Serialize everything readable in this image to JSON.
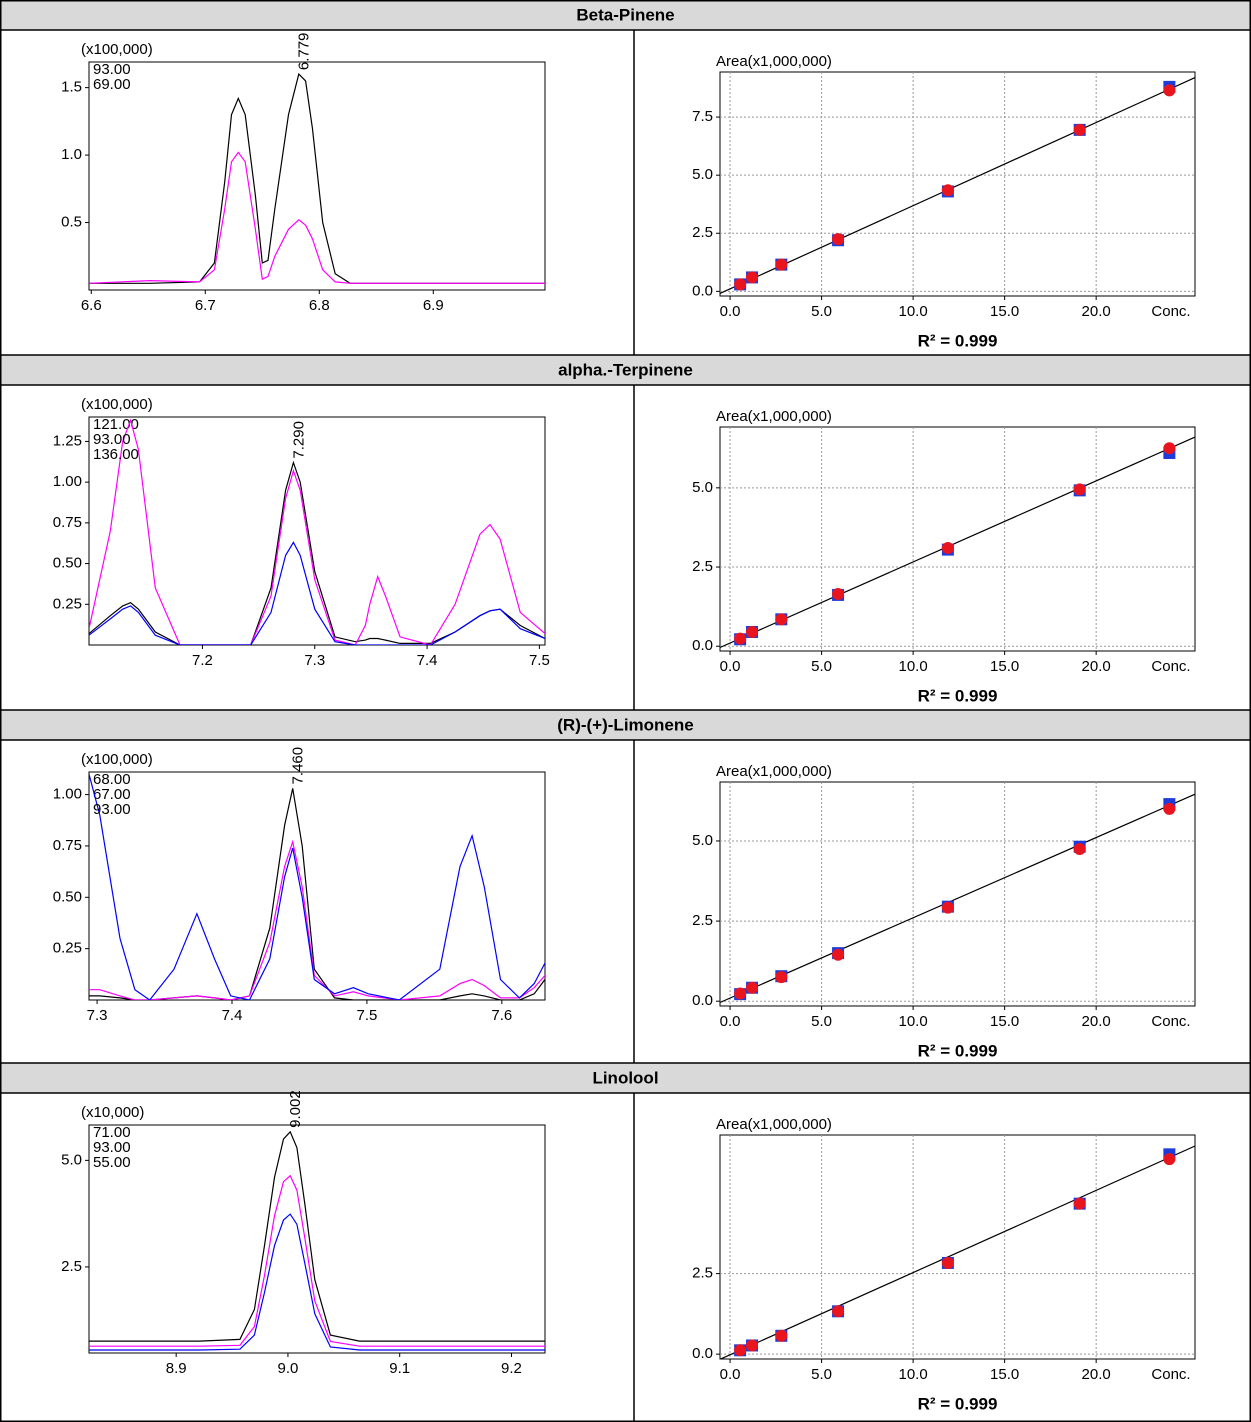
{
  "headings": [
    "Beta-Pinene",
    "alpha.-Terpinene",
    "(R)-(+)-Limonene",
    "Linolool"
  ],
  "chart_data": [
    {
      "type": "line",
      "y_label": "(x100,000)",
      "annotation": "6.779",
      "grid": false,
      "xlim": [
        6.598,
        6.998
      ],
      "xticks": [
        6.6,
        6.7,
        6.8,
        6.9
      ],
      "ylim": [
        0,
        1.69
      ],
      "yticks": [
        0.5,
        {
          "value": 1,
          "label": "1.0"
        },
        1.5
      ],
      "x": [
        6.598,
        6.651,
        6.695,
        6.708,
        6.717,
        6.723,
        6.729,
        6.735,
        6.744,
        6.75,
        6.755,
        6.761,
        6.773,
        6.782,
        6.788,
        6.794,
        6.803,
        6.814,
        6.827,
        6.998
      ],
      "series": [
        {
          "name": "93.00",
          "color": "#000000",
          "values": [
            0.05,
            0.05,
            0.06,
            0.2,
            0.8,
            1.3,
            1.42,
            1.3,
            0.7,
            0.2,
            0.22,
            0.6,
            1.3,
            1.6,
            1.55,
            1.2,
            0.5,
            0.12,
            0.05,
            0.05
          ]
        },
        {
          "name": "69.00",
          "color": "#ff00ff",
          "values": [
            0.05,
            0.07,
            0.06,
            0.15,
            0.6,
            0.95,
            1.02,
            0.95,
            0.45,
            0.08,
            0.1,
            0.25,
            0.45,
            0.52,
            0.48,
            0.38,
            0.15,
            0.06,
            0.05,
            0.05
          ]
        }
      ]
    },
    {
      "type": "scatter",
      "y_label": "Area(x1,000,000)",
      "x_label": "Conc.",
      "annotation": "R² = 0.999",
      "grid": true,
      "xlim": [
        -0.55,
        25.4
      ],
      "xticks": [
        {
          "value": 0,
          "label": "0.0"
        },
        {
          "value": 5,
          "label": "5.0"
        },
        {
          "value": 10,
          "label": "10.0"
        },
        {
          "value": 15,
          "label": "15.0"
        },
        {
          "value": 20,
          "label": "20.0"
        }
      ],
      "ylim": [
        -0.2,
        9.44
      ],
      "yticks": [
        {
          "value": 0,
          "label": "0.0"
        },
        2.5,
        {
          "value": 5,
          "label": "5.0"
        },
        7.5
      ],
      "x": [
        0.55,
        1.2,
        2.8,
        5.9,
        11.9,
        19.1,
        24.0
      ],
      "series": [
        {
          "style": "line",
          "color": "#000000",
          "x": [
            -0.55,
            25.4
          ],
          "values": [
            -0.09,
            9.2
          ]
        },
        {
          "marker": "square",
          "color": "#1e3cdc",
          "values": [
            0.3,
            0.6,
            1.15,
            2.2,
            4.3,
            6.95,
            8.8
          ]
        },
        {
          "marker": "circle",
          "color": "#e8141e",
          "values": [
            0.3,
            0.6,
            1.15,
            2.25,
            4.35,
            6.95,
            8.65
          ]
        }
      ]
    },
    {
      "type": "line",
      "y_label": "(x100,000)",
      "annotation": "7.290",
      "grid": false,
      "xlim": [
        7.099,
        7.505
      ],
      "xticks": [
        7.2,
        7.3,
        7.4,
        7.5
      ],
      "ylim": [
        0,
        1.4
      ],
      "yticks": [
        0.25,
        {
          "value": 0.5,
          "label": "0.50"
        },
        0.75,
        {
          "value": 1,
          "label": "1.00"
        },
        1.25
      ],
      "x": [
        7.099,
        7.118,
        7.129,
        7.136,
        7.143,
        7.158,
        7.18,
        7.243,
        7.261,
        7.274,
        7.281,
        7.287,
        7.3,
        7.318,
        7.336,
        7.345,
        7.349,
        7.356,
        7.363,
        7.376,
        7.403,
        7.425,
        7.447,
        7.456,
        7.465,
        7.483,
        7.505
      ],
      "series": [
        {
          "name": "121.00",
          "color": "#000000",
          "values": [
            0.07,
            0.18,
            0.24,
            0.26,
            0.22,
            0.08,
            0,
            0,
            0.35,
            0.95,
            1.12,
            1.0,
            0.45,
            0.05,
            0.02,
            0.03,
            0.04,
            0.04,
            0.03,
            0.01,
            0.01,
            0.08,
            0.18,
            0.21,
            0.22,
            0.12,
            0.04
          ]
        },
        {
          "name": "93.00",
          "color": "#ff00ff",
          "values": [
            0.1,
            0.7,
            1.25,
            1.38,
            1.2,
            0.35,
            0,
            0,
            0.3,
            0.9,
            1.07,
            0.95,
            0.4,
            0.03,
            0,
            0.12,
            0.25,
            0.42,
            0.3,
            0.05,
            0,
            0.25,
            0.68,
            0.74,
            0.65,
            0.2,
            0.07
          ]
        },
        {
          "name": "136.00",
          "color": "#0000ff",
          "values": [
            0.06,
            0.16,
            0.22,
            0.24,
            0.2,
            0.06,
            0,
            0,
            0.2,
            0.55,
            0.63,
            0.55,
            0.22,
            0.02,
            0,
            0,
            0,
            0,
            0,
            0,
            0,
            0.08,
            0.18,
            0.21,
            0.22,
            0.1,
            0.04
          ]
        }
      ]
    },
    {
      "type": "scatter",
      "y_label": "Area(x1,000,000)",
      "x_label": "Conc.",
      "annotation": "R² = 0.999",
      "grid": true,
      "xlim": [
        -0.55,
        25.4
      ],
      "xticks": [
        {
          "value": 0,
          "label": "0.0"
        },
        {
          "value": 5,
          "label": "5.0"
        },
        {
          "value": 10,
          "label": "10.0"
        },
        {
          "value": 15,
          "label": "15.0"
        },
        {
          "value": 20,
          "label": "20.0"
        }
      ],
      "ylim": [
        -0.15,
        6.92
      ],
      "yticks": [
        {
          "value": 0,
          "label": "0.0"
        },
        2.5,
        {
          "value": 5,
          "label": "5.0"
        }
      ],
      "x": [
        0.55,
        1.2,
        2.8,
        5.9,
        11.9,
        19.1,
        24.0
      ],
      "series": [
        {
          "style": "line",
          "color": "#000000",
          "x": [
            -0.55,
            25.4
          ],
          "values": [
            -0.04,
            6.6
          ]
        },
        {
          "marker": "square",
          "color": "#1e3cdc",
          "values": [
            0.22,
            0.45,
            0.85,
            1.62,
            3.05,
            4.92,
            6.1
          ]
        },
        {
          "marker": "circle",
          "color": "#e8141e",
          "values": [
            0.24,
            0.45,
            0.85,
            1.65,
            3.1,
            4.95,
            6.25
          ]
        }
      ]
    },
    {
      "type": "line",
      "y_label": "(x100,000)",
      "annotation": "7.460",
      "grid": false,
      "xlim": [
        7.294,
        7.632
      ],
      "xticks": [
        7.3,
        7.4,
        7.5,
        7.6
      ],
      "ylim": [
        0,
        1.11
      ],
      "yticks": [
        0.25,
        {
          "value": 0.5,
          "label": "0.50"
        },
        0.75,
        {
          "value": 1,
          "label": "1.00"
        }
      ],
      "x": [
        7.294,
        7.302,
        7.317,
        7.328,
        7.339,
        7.357,
        7.374,
        7.387,
        7.399,
        7.413,
        7.428,
        7.439,
        7.445,
        7.452,
        7.461,
        7.476,
        7.49,
        7.501,
        7.524,
        7.554,
        7.569,
        7.578,
        7.587,
        7.599,
        7.613,
        7.624,
        7.632
      ],
      "series": [
        {
          "name": "68.00",
          "color": "#000000",
          "values": [
            0.02,
            0.02,
            0.01,
            0,
            0,
            0.01,
            0.02,
            0.01,
            0,
            0.02,
            0.35,
            0.85,
            1.03,
            0.75,
            0.15,
            0.01,
            0,
            0,
            0,
            0,
            0.02,
            0.03,
            0.02,
            0,
            0,
            0.03,
            0.1
          ]
        },
        {
          "name": "67.00",
          "color": "#ff00ff",
          "values": [
            0.05,
            0.05,
            0.02,
            0,
            0,
            0.01,
            0.02,
            0.01,
            0,
            0.02,
            0.28,
            0.65,
            0.77,
            0.55,
            0.12,
            0.02,
            0.04,
            0.02,
            0,
            0.02,
            0.08,
            0.1,
            0.07,
            0.01,
            0.01,
            0.06,
            0.12
          ]
        },
        {
          "name": "93.00",
          "color": "#0000ff",
          "values": [
            1.1,
            0.9,
            0.3,
            0.05,
            0,
            0.15,
            0.42,
            0.2,
            0.02,
            0,
            0.2,
            0.6,
            0.74,
            0.5,
            0.1,
            0.03,
            0.06,
            0.03,
            0,
            0.15,
            0.65,
            0.8,
            0.55,
            0.1,
            0.01,
            0.08,
            0.18
          ]
        }
      ]
    },
    {
      "type": "scatter",
      "y_label": "Area(x1,000,000)",
      "x_label": "Conc.",
      "annotation": "R² = 0.999",
      "grid": true,
      "xlim": [
        -0.55,
        25.4
      ],
      "xticks": [
        {
          "value": 0,
          "label": "0.0"
        },
        {
          "value": 5,
          "label": "5.0"
        },
        {
          "value": 10,
          "label": "10.0"
        },
        {
          "value": 15,
          "label": "15.0"
        },
        {
          "value": 20,
          "label": "20.0"
        }
      ],
      "ylim": [
        -0.15,
        6.84
      ],
      "yticks": [
        {
          "value": 0,
          "label": "0.0"
        },
        2.5,
        {
          "value": 5,
          "label": "5.0"
        }
      ],
      "x": [
        0.55,
        1.2,
        2.8,
        5.9,
        11.9,
        19.1,
        24.0
      ],
      "series": [
        {
          "style": "line",
          "color": "#000000",
          "x": [
            -0.55,
            25.4
          ],
          "values": [
            -0.04,
            6.46
          ]
        },
        {
          "marker": "square",
          "color": "#1e3cdc",
          "values": [
            0.22,
            0.42,
            0.78,
            1.5,
            2.95,
            4.82,
            6.15
          ]
        },
        {
          "marker": "circle",
          "color": "#e8141e",
          "values": [
            0.24,
            0.42,
            0.75,
            1.45,
            2.92,
            4.75,
            6.0
          ]
        }
      ]
    },
    {
      "type": "line",
      "y_label": "(x10,000)",
      "annotation": "9.002",
      "grid": false,
      "xlim": [
        8.822,
        9.23
      ],
      "xticks": [
        8.9,
        {
          "value": 9,
          "label": "9.0"
        },
        9.1,
        9.2
      ],
      "ylim": [
        0.48,
        5.83
      ],
      "yticks": [
        2.5,
        {
          "value": 5,
          "label": "5.0"
        }
      ],
      "x": [
        8.822,
        8.921,
        8.957,
        8.97,
        8.979,
        8.988,
        8.996,
        9.002,
        9.008,
        9.015,
        9.024,
        9.038,
        9.064,
        9.23
      ],
      "series": [
        {
          "name": "71.00",
          "color": "#000000",
          "values": [
            0.76,
            0.76,
            0.8,
            1.5,
            3.0,
            4.6,
            5.5,
            5.67,
            5.3,
            4.0,
            2.2,
            0.9,
            0.76,
            0.76
          ]
        },
        {
          "name": "93.00",
          "color": "#ff00ff",
          "values": [
            0.64,
            0.64,
            0.66,
            1.1,
            2.3,
            3.7,
            4.5,
            4.64,
            4.3,
            3.2,
            1.7,
            0.75,
            0.64,
            0.64
          ]
        },
        {
          "name": "55.00",
          "color": "#0000ff",
          "values": [
            0.55,
            0.55,
            0.57,
            0.9,
            1.9,
            3.0,
            3.6,
            3.74,
            3.5,
            2.6,
            1.4,
            0.62,
            0.55,
            0.55
          ]
        }
      ]
    },
    {
      "type": "scatter",
      "y_label": "Area(x1,000,000)",
      "x_label": "Conc.",
      "annotation": "R² = 0.999",
      "grid": true,
      "xlim": [
        -0.55,
        25.4
      ],
      "xticks": [
        {
          "value": 0,
          "label": "0.0"
        },
        {
          "value": 5,
          "label": "5.0"
        },
        {
          "value": 10,
          "label": "10.0"
        },
        {
          "value": 15,
          "label": "15.0"
        },
        {
          "value": 20,
          "label": "20.0"
        }
      ],
      "ylim": [
        -0.15,
        6.8
      ],
      "yticks": [
        {
          "value": 0,
          "label": "0.0"
        },
        2.5
      ],
      "x": [
        0.55,
        1.2,
        2.8,
        5.9,
        11.9,
        19.1,
        24.0
      ],
      "series": [
        {
          "style": "line",
          "color": "#000000",
          "x": [
            -0.55,
            25.4
          ],
          "values": [
            -0.16,
            6.46
          ]
        },
        {
          "marker": "square",
          "color": "#1e3cdc",
          "values": [
            0.12,
            0.27,
            0.57,
            1.33,
            2.83,
            4.67,
            6.2
          ]
        },
        {
          "marker": "circle",
          "color": "#e8141e",
          "values": [
            0.12,
            0.27,
            0.57,
            1.33,
            2.83,
            4.67,
            6.05
          ]
        }
      ]
    }
  ]
}
